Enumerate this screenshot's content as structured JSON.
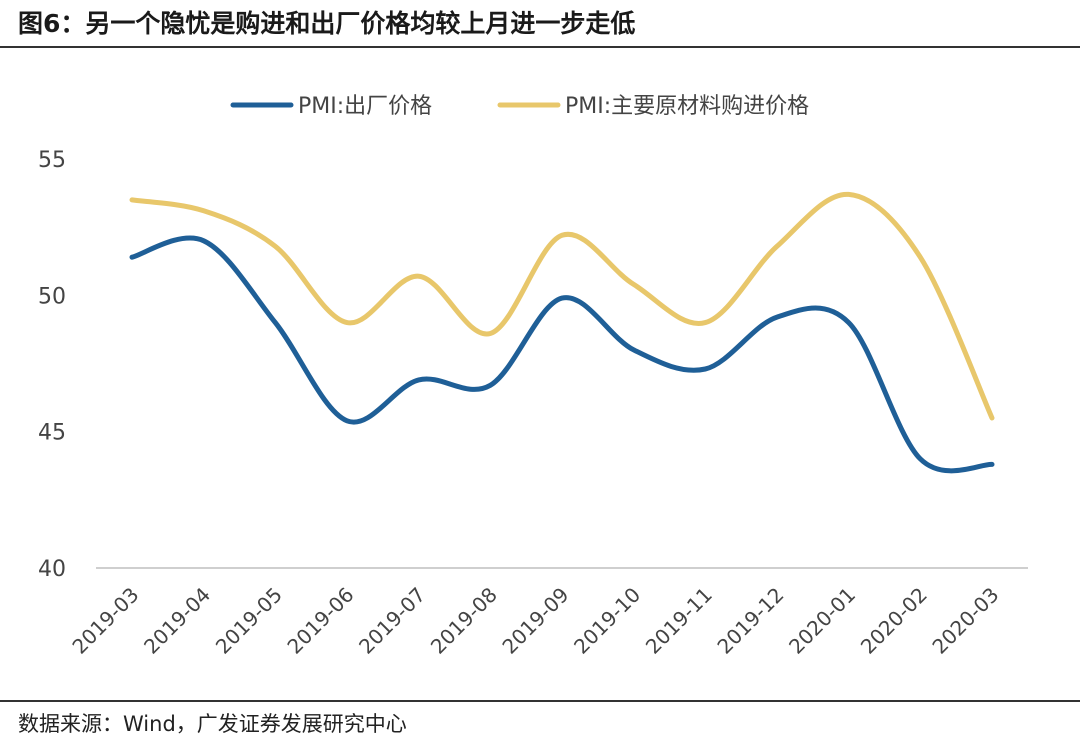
{
  "header": {
    "title": "图6：另一个隐忧是购进和出厂价格均较上月进一步走低"
  },
  "footer": {
    "source": "数据来源：Wind，广发证券发展研究中心"
  },
  "chart_data": {
    "type": "line",
    "categories": [
      "2019-03",
      "2019-04",
      "2019-05",
      "2019-06",
      "2019-07",
      "2019-08",
      "2019-09",
      "2019-10",
      "2019-11",
      "2019-12",
      "2020-01",
      "2020-02",
      "2020-03"
    ],
    "series": [
      {
        "name": "PMI:出厂价格",
        "color": "#1F5F97",
        "values": [
          51.4,
          52.0,
          49.0,
          45.4,
          46.9,
          46.7,
          49.9,
          48.0,
          47.3,
          49.2,
          49.0,
          44.0,
          43.8
        ]
      },
      {
        "name": "PMI:主要原材料购进价格",
        "color": "#E8C76B",
        "values": [
          53.5,
          53.1,
          51.8,
          49.0,
          50.7,
          48.6,
          52.2,
          50.4,
          49.0,
          51.8,
          53.7,
          51.4,
          45.5
        ]
      }
    ],
    "yticks": [
      40,
      45,
      50,
      55
    ],
    "ylim": [
      40,
      55
    ],
    "grid": false,
    "legend": "top"
  }
}
